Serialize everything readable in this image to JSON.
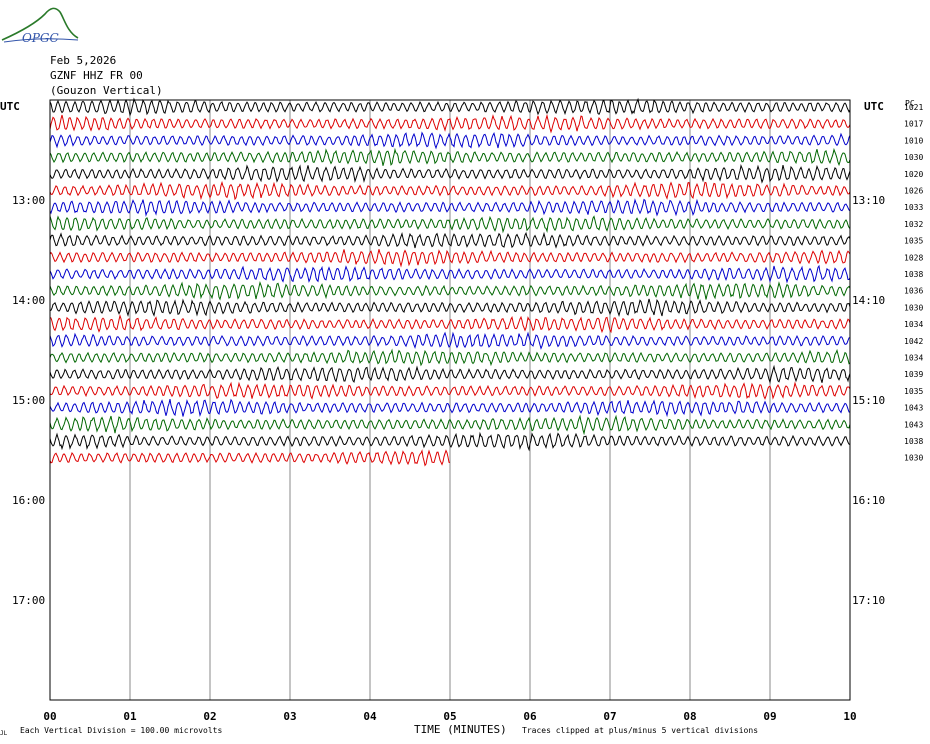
{
  "header": {
    "logo_text": "OPGC",
    "date": "Feb 5,2026",
    "station": "GZNF HHZ FR 00",
    "location": "(Gouzon Vertical)",
    "utc_left": "UTC",
    "utc_right": "UTC",
    "pc_label": "PC"
  },
  "footer": {
    "scale_note": "Each Vertical Division =  100.00 microvolts",
    "axis_title": "TIME (MINUTES)",
    "clip_note": "Traces clipped at plus/minus 5 vertical divisions",
    "corner_mark": "JL"
  },
  "chart_data": {
    "type": "line",
    "title": "",
    "xlabel": "TIME (MINUTES)",
    "ylabel": "",
    "xlim": [
      0,
      10
    ],
    "x_ticks": [
      "00",
      "01",
      "02",
      "03",
      "04",
      "05",
      "06",
      "07",
      "08",
      "09",
      "10"
    ],
    "grid": true,
    "left_hour_labels": [
      "13:00",
      "14:00",
      "15:00",
      "16:00",
      "17:00"
    ],
    "right_hour_labels": [
      "13:10",
      "14:10",
      "15:10",
      "16:10",
      "17:10"
    ],
    "trace_colors": [
      "#000000",
      "#dd0000",
      "#0000cc",
      "#006600"
    ],
    "traces": [
      {
        "right_value": "1021",
        "minutes": 10
      },
      {
        "right_value": "1017",
        "minutes": 10
      },
      {
        "right_value": "1010",
        "minutes": 10
      },
      {
        "right_value": "1030",
        "minutes": 10
      },
      {
        "right_value": "1020",
        "minutes": 10
      },
      {
        "right_value": "1026",
        "minutes": 10
      },
      {
        "right_value": "1033",
        "minutes": 10
      },
      {
        "right_value": "1032",
        "minutes": 10
      },
      {
        "right_value": "1035",
        "minutes": 10
      },
      {
        "right_value": "1028",
        "minutes": 10
      },
      {
        "right_value": "1038",
        "minutes": 10
      },
      {
        "right_value": "1036",
        "minutes": 10
      },
      {
        "right_value": "1030",
        "minutes": 10
      },
      {
        "right_value": "1034",
        "minutes": 10
      },
      {
        "right_value": "1042",
        "minutes": 10
      },
      {
        "right_value": "1034",
        "minutes": 10
      },
      {
        "right_value": "1039",
        "minutes": 10
      },
      {
        "right_value": "1035",
        "minutes": 10
      },
      {
        "right_value": "1043",
        "minutes": 10
      },
      {
        "right_value": "1043",
        "minutes": 10
      },
      {
        "right_value": "1038",
        "minutes": 10
      },
      {
        "right_value": "1030",
        "minutes": 5
      }
    ]
  }
}
